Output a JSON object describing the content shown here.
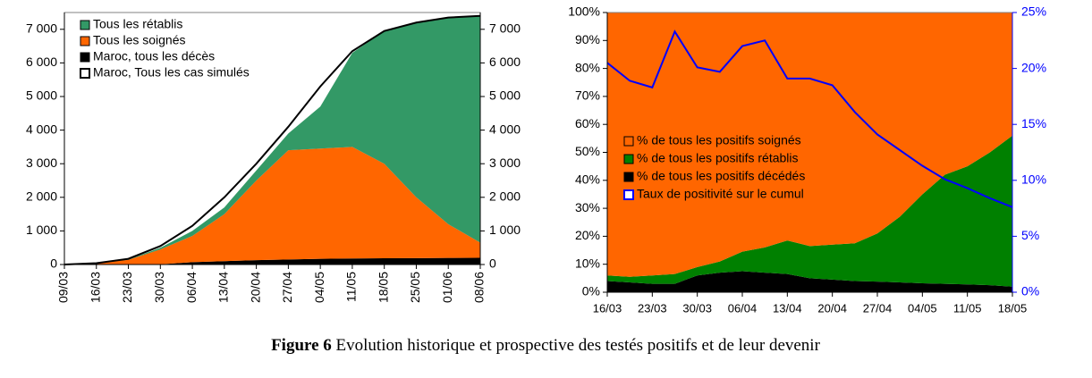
{
  "chart_data": [
    {
      "type": "area",
      "categories": [
        "09/03",
        "16/03",
        "23/03",
        "30/03",
        "06/04",
        "13/04",
        "20/04",
        "27/04",
        "04/05",
        "11/05",
        "18/05",
        "25/05",
        "01/06",
        "08/06"
      ],
      "series": [
        {
          "name": "Maroc, tous les décès",
          "color": "#000000",
          "values": [
            0,
            1,
            3,
            5,
            70,
            100,
            130,
            150,
            170,
            180,
            185,
            190,
            195,
            200
          ]
        },
        {
          "name": "Tous les soignés",
          "color": "#ff6600",
          "values": [
            0,
            34,
            137,
            445,
            780,
            1400,
            2370,
            3250,
            3280,
            3320,
            2815,
            1810,
            1005,
            450
          ]
        },
        {
          "name": "Tous les rétablis",
          "color": "#339966",
          "values": [
            0,
            5,
            10,
            50,
            150,
            200,
            300,
            500,
            1250,
            2800,
            3950,
            5200,
            6150,
            6750
          ]
        },
        {
          "name": "Maroc, Tous les cas simulés",
          "type": "line",
          "color": "#000000",
          "values": [
            0,
            40,
            170,
            550,
            1150,
            2000,
            3000,
            4100,
            5300,
            6350,
            6950,
            7200,
            7350,
            7400
          ]
        }
      ],
      "ylim": [
        0,
        7500
      ],
      "yticks": [
        0,
        {
          "value": 1000,
          "label": "1 000"
        },
        {
          "value": 2000,
          "label": "2 000"
        },
        {
          "value": 3000,
          "label": "3 000"
        },
        {
          "value": 4000,
          "label": "4 000"
        },
        {
          "value": 5000,
          "label": "5 000"
        },
        {
          "value": 6000,
          "label": "6 000"
        },
        {
          "value": 7000,
          "label": "7 000"
        }
      ],
      "y2lim": [
        0,
        7500
      ],
      "y2ticks": [
        0,
        {
          "value": 1000,
          "label": "1 000"
        },
        {
          "value": 2000,
          "label": "2 000"
        },
        {
          "value": 3000,
          "label": "3 000"
        },
        {
          "value": 4000,
          "label": "4 000"
        },
        {
          "value": 5000,
          "label": "5 000"
        },
        {
          "value": 6000,
          "label": "6 000"
        },
        {
          "value": 7000,
          "label": "7 000"
        }
      ],
      "legend": "upper left"
    },
    {
      "type": "area",
      "categories": [
        "16/03",
        null,
        "23/03",
        null,
        "30/03",
        null,
        "06/04",
        null,
        "13/04",
        null,
        "20/04",
        null,
        "27/04",
        null,
        "04/05",
        null,
        "11/05",
        null,
        "18/05"
      ],
      "series": [
        {
          "name": "% de tous les positifs décédés",
          "color": "#000000",
          "values": [
            4,
            3.5,
            3,
            3,
            6,
            7,
            7.5,
            7,
            6.5,
            5,
            4.5,
            4,
            3.8,
            3.5,
            3.2,
            3,
            2.8,
            2.5,
            2
          ]
        },
        {
          "name": "% de tous les positifs rétablis",
          "color": "#008000",
          "values": [
            2,
            2,
            3,
            3.5,
            3,
            4,
            7,
            9,
            12,
            11.5,
            12.5,
            13.5,
            17.2,
            23.5,
            31.8,
            39,
            42.2,
            47.5,
            54
          ]
        },
        {
          "name": "% de tous les positifs soignés",
          "color": "#ff6600",
          "values": [
            94,
            94.5,
            94,
            93.5,
            91,
            89,
            85.5,
            84,
            81.5,
            83.5,
            83,
            82.5,
            79,
            73,
            65,
            58,
            55,
            50,
            44
          ]
        },
        {
          "name": "Taux de positivité sur le cumul",
          "type": "line",
          "axis": "y2",
          "color": "#0000ff",
          "values": [
            20.5,
            18.9,
            18.3,
            23.3,
            20.1,
            19.7,
            22,
            22.5,
            19.1,
            19.1,
            18.5,
            16.1,
            14.1,
            12.7,
            11.3,
            10.1,
            9.3,
            8.4,
            7.6
          ]
        }
      ],
      "ylim": [
        0,
        100
      ],
      "yticks": [
        {
          "value": 0,
          "label": "0%"
        },
        {
          "value": 10,
          "label": "10%"
        },
        {
          "value": 20,
          "label": "20%"
        },
        {
          "value": 30,
          "label": "30%"
        },
        {
          "value": 40,
          "label": "40%"
        },
        {
          "value": 50,
          "label": "50%"
        },
        {
          "value": 60,
          "label": "60%"
        },
        {
          "value": 70,
          "label": "70%"
        },
        {
          "value": 80,
          "label": "80%"
        },
        {
          "value": 90,
          "label": "90%"
        },
        {
          "value": 100,
          "label": "100%"
        }
      ],
      "y2lim": [
        0,
        25
      ],
      "y2ticks": [
        {
          "value": 0,
          "label": "0%"
        },
        {
          "value": 5,
          "label": "5%"
        },
        {
          "value": 10,
          "label": "10%"
        },
        {
          "value": 15,
          "label": "15%"
        },
        {
          "value": 20,
          "label": "20%"
        },
        {
          "value": 25,
          "label": "25%"
        }
      ],
      "legend": "center left"
    }
  ],
  "caption": {
    "label": "Figure 6",
    "text": " Evolution historique et prospective des testés positifs et de leur devenir"
  }
}
